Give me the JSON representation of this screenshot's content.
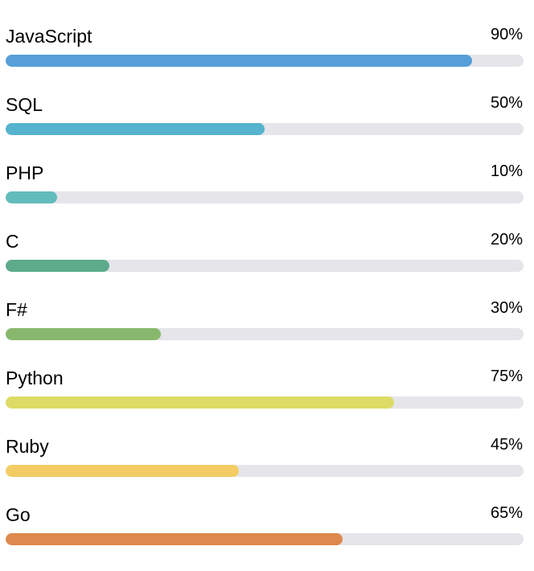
{
  "chart_data": {
    "type": "bar",
    "orientation": "horizontal",
    "max": 100,
    "items": [
      {
        "label": "JavaScript",
        "value": 90,
        "value_label": "90%",
        "color": "#569fd8"
      },
      {
        "label": "SQL",
        "value": 50,
        "value_label": "50%",
        "color": "#55b3cd"
      },
      {
        "label": "PHP",
        "value": 10,
        "value_label": "10%",
        "color": "#62bcbc"
      },
      {
        "label": "C",
        "value": 20,
        "value_label": "20%",
        "color": "#5dab8b"
      },
      {
        "label": "F#",
        "value": 30,
        "value_label": "30%",
        "color": "#88b86d"
      },
      {
        "label": "Python",
        "value": 75,
        "value_label": "75%",
        "color": "#dcdc66"
      },
      {
        "label": "Ruby",
        "value": 45,
        "value_label": "45%",
        "color": "#f3cd63"
      },
      {
        "label": "Go",
        "value": 65,
        "value_label": "65%",
        "color": "#de884d"
      }
    ]
  }
}
